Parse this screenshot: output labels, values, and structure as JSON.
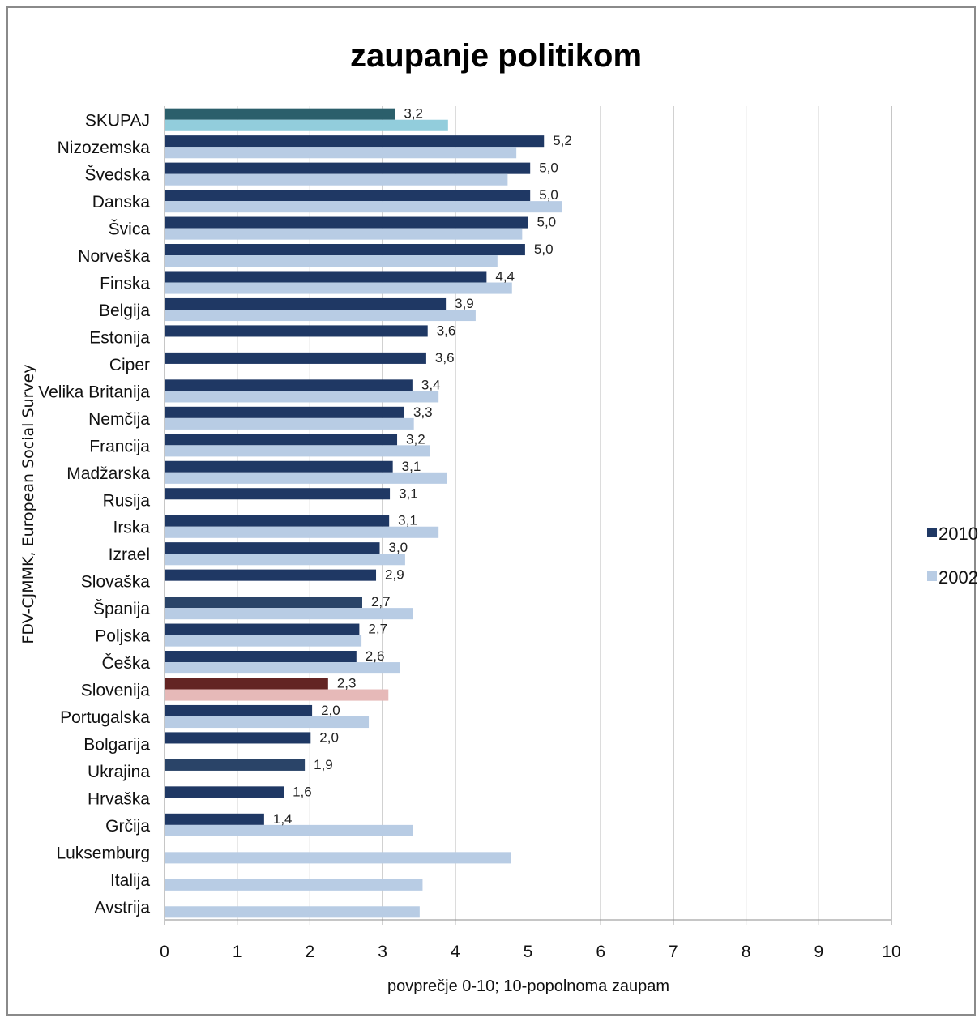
{
  "chart_data": {
    "type": "bar",
    "orientation": "horizontal",
    "title": "zaupanje politikom",
    "xlabel": "povprečje 0-10; 10-popolnoma zaupam",
    "source_label": "FDV-CJMMK, European Social Survey",
    "xlim": [
      0,
      10
    ],
    "xticks": [
      "0",
      "1",
      "2",
      "3",
      "4",
      "5",
      "6",
      "7",
      "8",
      "9",
      "10"
    ],
    "grid": true,
    "legend_position": "right",
    "categories": [
      "SKUPAJ",
      "Nizozemska",
      "Švedska",
      "Danska",
      "Švica",
      "Norveška",
      "Finska",
      "Belgija",
      "Estonija",
      "Ciper",
      "Velika Britanija",
      "Nemčija",
      "Francija",
      "Madžarska",
      "Rusija",
      "Irska",
      "Izrael",
      "Slovaška",
      "Španija",
      "Poljska",
      "Češka",
      "Slovenija",
      "Portugalska",
      "Bolgarija",
      "Ukrajina",
      "Hrvaška",
      "Grčija",
      "Luksemburg",
      "Italija",
      "Avstrija"
    ],
    "series": [
      {
        "name": "2010",
        "color": "#1f3864",
        "values": [
          3.17,
          5.22,
          5.03,
          5.03,
          5.0,
          4.96,
          4.43,
          3.87,
          3.62,
          3.6,
          3.41,
          3.3,
          3.2,
          3.14,
          3.1,
          3.09,
          2.96,
          2.91,
          2.72,
          2.68,
          2.64,
          2.25,
          2.03,
          2.01,
          1.93,
          1.64,
          1.37,
          null,
          null,
          null
        ],
        "labels": [
          "3,2",
          "5,2",
          "5,0",
          "5,0",
          "5,0",
          "5,0",
          "4,4",
          "3,9",
          "3,6",
          "3,6",
          "3,4",
          "3,3",
          "3,2",
          "3,1",
          "3,1",
          "3,1",
          "3,0",
          "2,9",
          "2,7",
          "2,7",
          "2,6",
          "2,3",
          "2,0",
          "2,0",
          "1,9",
          "1,6",
          "1,4",
          "",
          "",
          ""
        ]
      },
      {
        "name": "2002",
        "color": "#b8cce4",
        "values": [
          3.9,
          4.84,
          4.72,
          5.47,
          4.92,
          4.58,
          4.78,
          4.28,
          null,
          null,
          3.77,
          3.43,
          3.65,
          3.89,
          null,
          3.77,
          3.31,
          null,
          3.42,
          2.71,
          3.24,
          3.08,
          2.81,
          null,
          null,
          null,
          3.42,
          4.77,
          3.55,
          3.51
        ]
      }
    ],
    "highlight_colors": {
      "SKUPAJ": [
        "#2b5f6b",
        "#92cddc"
      ],
      "Slovenija": [
        "#632423",
        "#e6b9b8"
      ],
      "Španija": [
        "#2a4468",
        "#b8cce4"
      ],
      "Ukrajina": [
        "#2a4468",
        "#b8cce4"
      ]
    }
  }
}
